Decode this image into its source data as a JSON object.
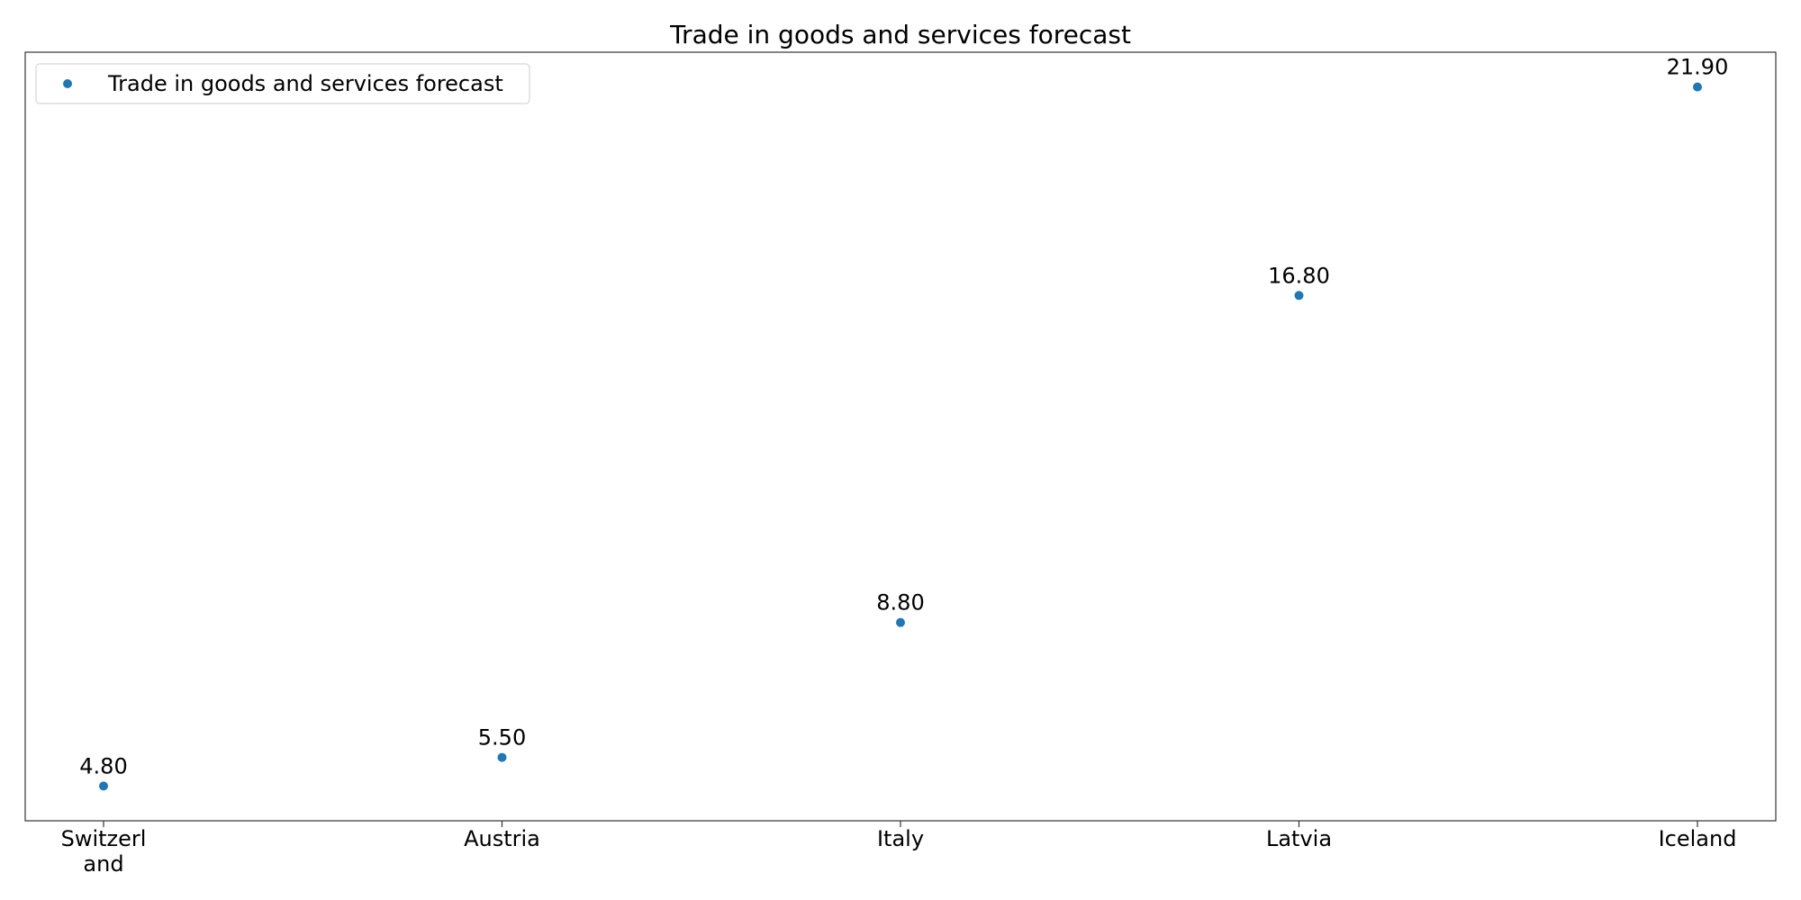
{
  "chart_data": {
    "type": "scatter",
    "title": "Trade in goods and services forecast",
    "xlabel": "",
    "ylabel": "",
    "categories": [
      "Switzerland",
      "Austria",
      "Italy",
      "Latvia",
      "Iceland"
    ],
    "category_labels": [
      [
        "Switzerl",
        "and"
      ],
      [
        "Austria"
      ],
      [
        "Italy"
      ],
      [
        "Latvia"
      ],
      [
        "Iceland"
      ]
    ],
    "series": [
      {
        "name": "Trade in goods and services forecast",
        "values": [
          4.8,
          5.5,
          8.8,
          16.8,
          21.9
        ],
        "labels": [
          "4.80",
          "5.50",
          "8.80",
          "16.80",
          "21.90"
        ],
        "color": "#1f77b4"
      }
    ],
    "ylim": [
      3.95,
      22.75
    ],
    "grid": false,
    "show_y_ticks": false,
    "legend": {
      "position": "top-left"
    }
  }
}
